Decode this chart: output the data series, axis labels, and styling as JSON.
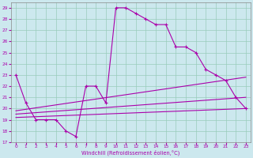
{
  "xlabel": "Windchill (Refroidissement éolien,°C)",
  "background_color": "#cce8ee",
  "grid_color": "#99ccbb",
  "line_color": "#aa00aa",
  "xlim": [
    -0.5,
    23.5
  ],
  "ylim": [
    17,
    29.5
  ],
  "yticks": [
    17,
    18,
    19,
    20,
    21,
    22,
    23,
    24,
    25,
    26,
    27,
    28,
    29
  ],
  "xticks": [
    0,
    1,
    2,
    3,
    4,
    5,
    6,
    7,
    8,
    9,
    10,
    11,
    12,
    13,
    14,
    15,
    16,
    17,
    18,
    19,
    20,
    21,
    22,
    23
  ],
  "series1_x": [
    0,
    1,
    2,
    3,
    4,
    5,
    6,
    7,
    8,
    9,
    10,
    11,
    12,
    13,
    14,
    15,
    16,
    17,
    18,
    19,
    20,
    21,
    22,
    23
  ],
  "series1_y": [
    23,
    20.5,
    19,
    19,
    19,
    18,
    17.5,
    22,
    22,
    20.5,
    29,
    29,
    28.5,
    28,
    27.5,
    27.5,
    25.5,
    25.5,
    25,
    23.5,
    23,
    22.5,
    21,
    20
  ],
  "trend1_x": [
    0,
    23
  ],
  "trend1_y": [
    19.2,
    20.0
  ],
  "trend2_x": [
    0,
    23
  ],
  "trend2_y": [
    19.5,
    21.0
  ],
  "trend3_x": [
    0,
    23
  ],
  "trend3_y": [
    19.8,
    22.8
  ]
}
